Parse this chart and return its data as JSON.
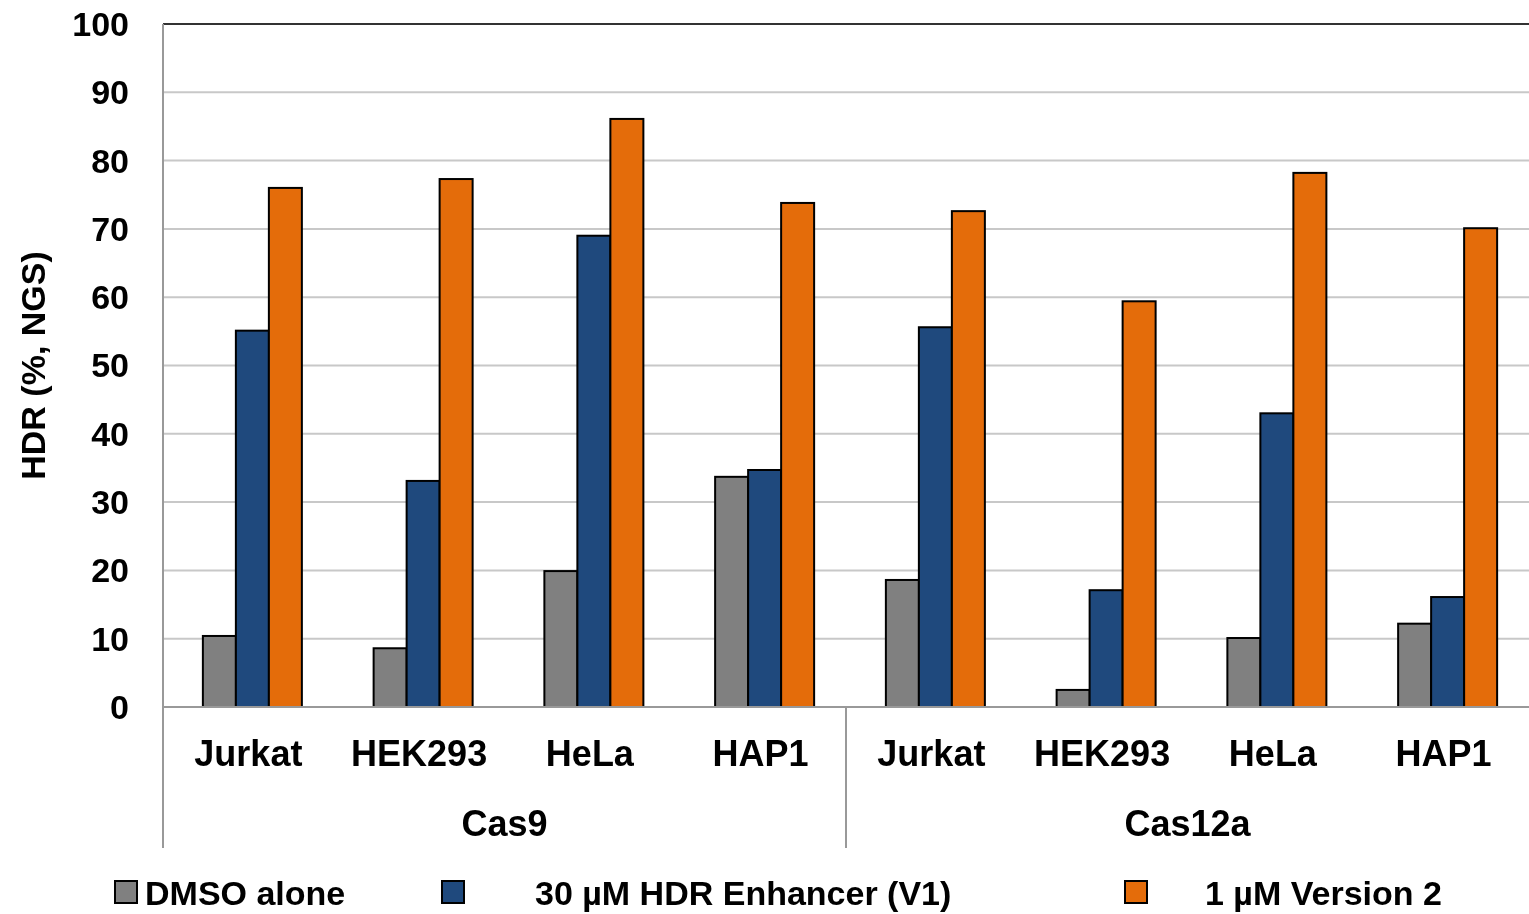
{
  "chart_data": {
    "type": "bar",
    "ylabel": "HDR (%, NGS)",
    "categories": [
      "Jurkat",
      "HEK293",
      "HeLa",
      "HAP1",
      "Jurkat",
      "HEK293",
      "HeLa",
      "HAP1"
    ],
    "series": [
      {
        "name": "DMSO alone",
        "color": "#808080",
        "values": [
          10.4,
          8.6,
          19.9,
          33.7,
          18.6,
          2.5,
          10.1,
          12.2
        ]
      },
      {
        "name": "30 µM HDR Enhancer (V1)",
        "color": "#1f497d",
        "values": [
          55.1,
          33.1,
          69.0,
          34.7,
          55.6,
          17.1,
          43.0,
          16.1
        ]
      },
      {
        "name": "1 µM Version 2",
        "color": "#e46c0a",
        "values": [
          76.0,
          77.3,
          86.1,
          73.8,
          72.6,
          59.4,
          78.2,
          70.1
        ]
      }
    ],
    "annotations": [
      "Cas9",
      "Cas12a"
    ],
    "ylim": [
      0,
      100
    ],
    "yticks": [
      0,
      10,
      20,
      30,
      40,
      50,
      60,
      70,
      80,
      90,
      100
    ],
    "grid": "y",
    "legend": "bottom"
  }
}
